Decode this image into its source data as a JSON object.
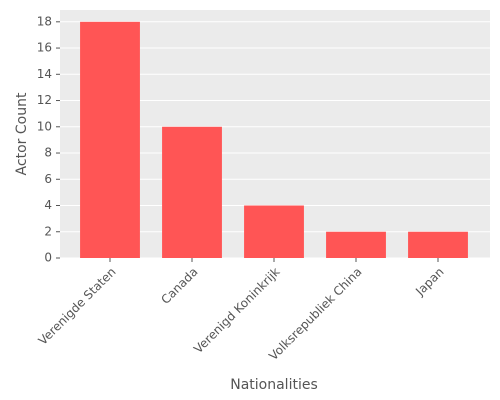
{
  "chart_data": {
    "type": "bar",
    "x_label": "Nationalities",
    "y_label": "Actor Count",
    "categories": [
      "Verenigde Staten",
      "Canada",
      "Verenigd Koninkrijk",
      "Volksrepubliek China",
      "Japan"
    ],
    "values": [
      18,
      10,
      4,
      2,
      2
    ],
    "color": "#ff5555",
    "ylim": [
      0,
      18.9
    ],
    "yticks": [
      0,
      2,
      4,
      6,
      8,
      10,
      12,
      14,
      16,
      18
    ],
    "grid": true
  }
}
